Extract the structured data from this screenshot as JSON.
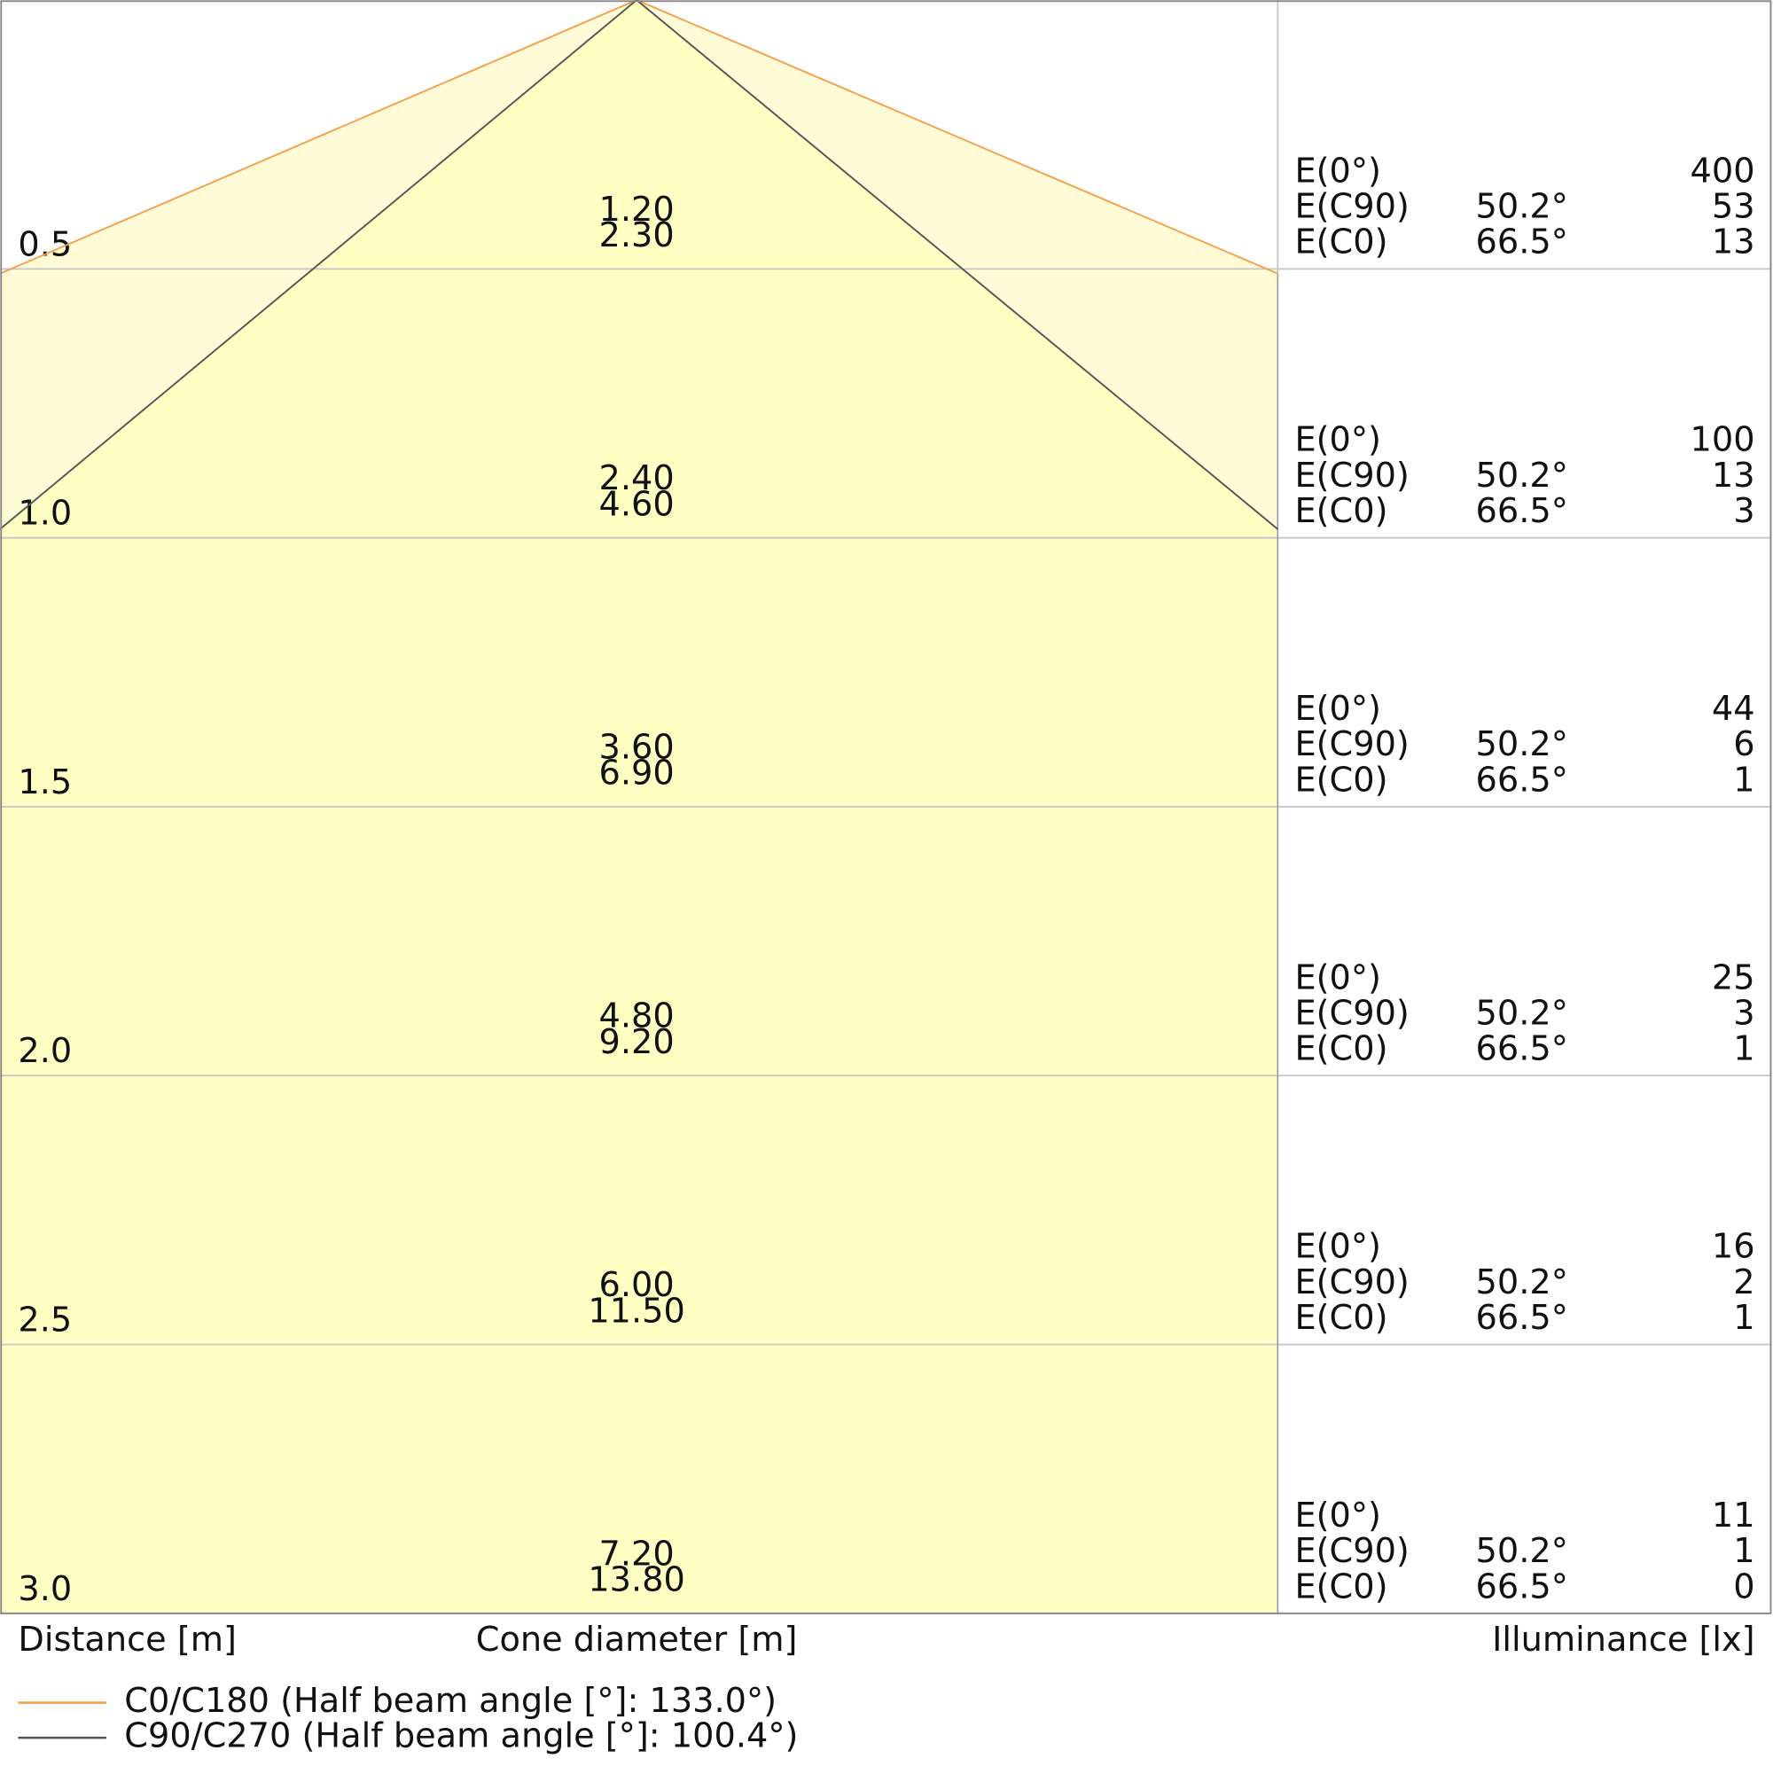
{
  "axis_labels": {
    "distance": "Distance [m]",
    "diameter": "Cone diameter [m]",
    "illuminance": "Illuminance [lx]"
  },
  "legend": [
    {
      "label": "C0/C180 (Half beam angle [°]: 133.0°)",
      "color": "#f5a04a"
    },
    {
      "label": "C90/C270 (Half beam angle [°]: 100.4°)",
      "color": "#555555"
    }
  ],
  "rows": [
    {
      "distance": "0.5",
      "diameters": [
        "1.20",
        "2.30"
      ],
      "illuminance": [
        {
          "label": "E(0°)",
          "value": "400"
        },
        {
          "label": "E(C90)",
          "angle": "50.2°",
          "value": "53"
        },
        {
          "label": "E(C0)",
          "angle": "66.5°",
          "value": "13"
        }
      ]
    },
    {
      "distance": "1.0",
      "diameters": [
        "2.40",
        "4.60"
      ],
      "illuminance": [
        {
          "label": "E(0°)",
          "value": "100"
        },
        {
          "label": "E(C90)",
          "angle": "50.2°",
          "value": "13"
        },
        {
          "label": "E(C0)",
          "angle": "66.5°",
          "value": "3"
        }
      ]
    },
    {
      "distance": "1.5",
      "diameters": [
        "3.60",
        "6.90"
      ],
      "illuminance": [
        {
          "label": "E(0°)",
          "value": "44"
        },
        {
          "label": "E(C90)",
          "angle": "50.2°",
          "value": "6"
        },
        {
          "label": "E(C0)",
          "angle": "66.5°",
          "value": "1"
        }
      ]
    },
    {
      "distance": "2.0",
      "diameters": [
        "4.80",
        "9.20"
      ],
      "illuminance": [
        {
          "label": "E(0°)",
          "value": "25"
        },
        {
          "label": "E(C90)",
          "angle": "50.2°",
          "value": "3"
        },
        {
          "label": "E(C0)",
          "angle": "66.5°",
          "value": "1"
        }
      ]
    },
    {
      "distance": "2.5",
      "diameters": [
        "6.00",
        "11.50"
      ],
      "illuminance": [
        {
          "label": "E(0°)",
          "value": "16"
        },
        {
          "label": "E(C90)",
          "angle": "50.2°",
          "value": "2"
        },
        {
          "label": "E(C0)",
          "angle": "66.5°",
          "value": "1"
        }
      ]
    },
    {
      "distance": "3.0",
      "diameters": [
        "7.20",
        "13.80"
      ],
      "illuminance": [
        {
          "label": "E(0°)",
          "value": "11"
        },
        {
          "label": "E(C90)",
          "angle": "50.2°",
          "value": "1"
        },
        {
          "label": "E(C0)",
          "angle": "66.5°",
          "value": "0"
        }
      ]
    }
  ]
}
